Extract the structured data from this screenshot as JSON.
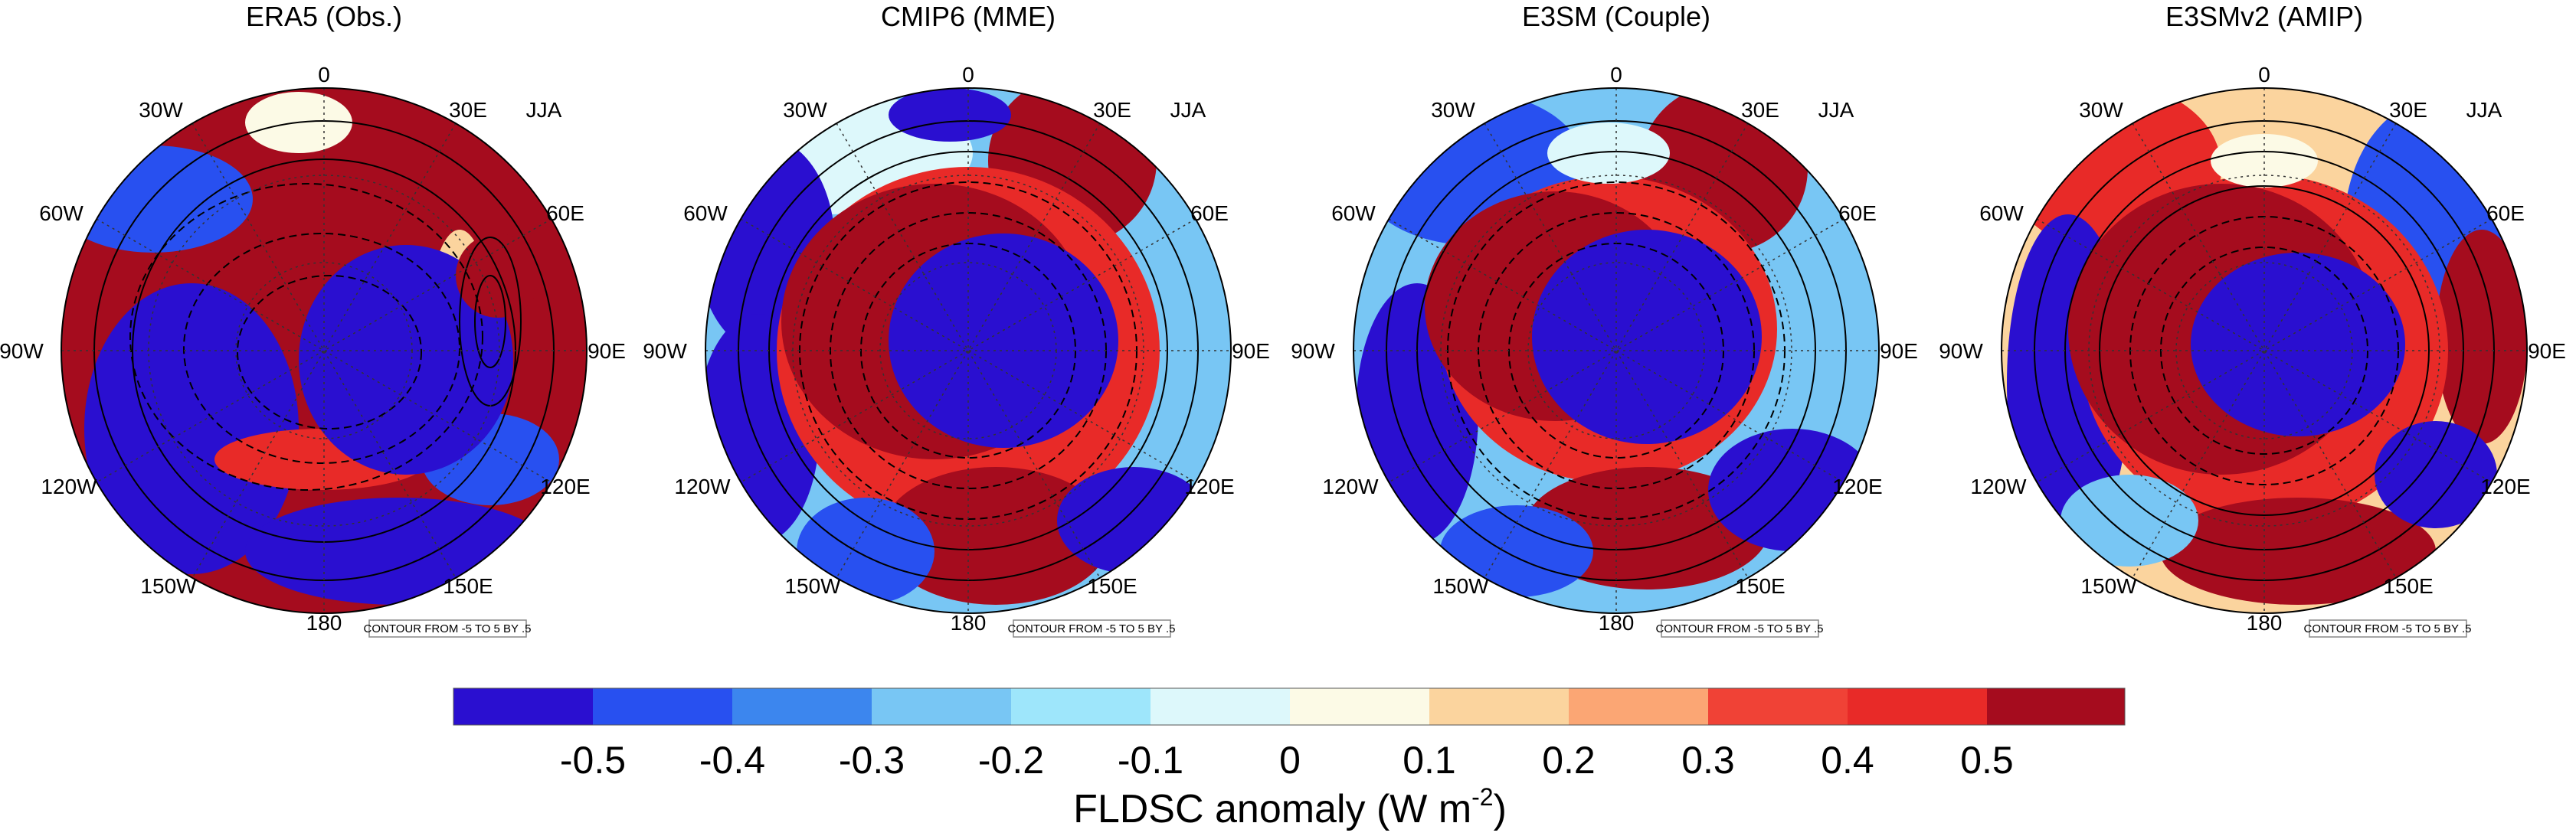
{
  "season": "JJA",
  "panels": [
    {
      "title": "ERA5 (Obs.)"
    },
    {
      "title": "CMIP6 (MME)"
    },
    {
      "title": "E3SM (Couple)"
    },
    {
      "title": "E3SMv2 (AMIP)"
    }
  ],
  "longitude_labels": [
    "0",
    "30E",
    "60E",
    "90E",
    "120E",
    "150E",
    "180",
    "150W",
    "120W",
    "90W",
    "60W",
    "30W"
  ],
  "contour_note": "CONTOUR FROM -5 TO 5 BY .5",
  "colorbar": {
    "title": "FLDSC anomaly (W m",
    "title_superscript": "-2",
    "title_close": ")",
    "tick_labels": [
      "-0.5",
      "-0.4",
      "-0.3",
      "-0.2",
      "-0.1",
      "0",
      "0.1",
      "0.2",
      "0.3",
      "0.4",
      "0.5"
    ],
    "colors": [
      "#2a0fd0",
      "#2850f0",
      "#3c86ee",
      "#78c6f4",
      "#9ee6fb",
      "#ddf8fb",
      "#fcfae6",
      "#fbd49e",
      "#fba674",
      "#f04236",
      "#e82a28",
      "#a50c1e"
    ]
  },
  "colors": {
    "blue_anomaly": "#2a0fd0",
    "red_anomaly": "#a50c1e",
    "mid_red": "#e82a28",
    "light_blue": "#9ee6fb"
  }
}
